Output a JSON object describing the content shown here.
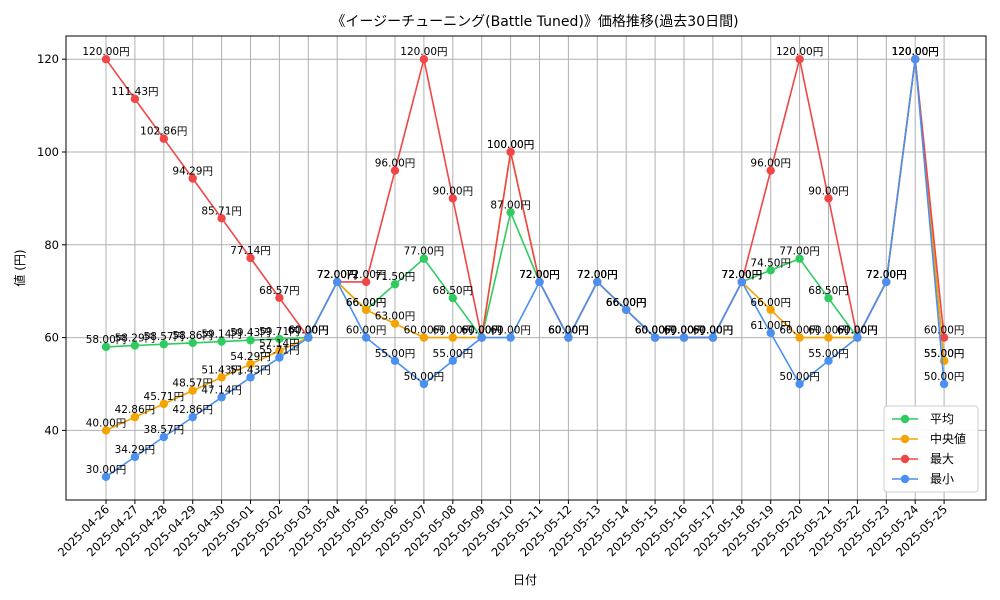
{
  "chart_data": {
    "type": "line",
    "title": "《イージーチューニング(Battle Tuned)》価格推移(過去30日間)",
    "xlabel": "日付",
    "ylabel": "値 (円)",
    "ylim": [
      25,
      125
    ],
    "yticks": [
      40,
      60,
      80,
      100,
      120
    ],
    "grid": true,
    "legend_position": "lower-right",
    "label_suffix": "円",
    "categories": [
      "2025-04-26",
      "2025-04-27",
      "2025-04-28",
      "2025-04-29",
      "2025-04-30",
      "2025-05-01",
      "2025-05-02",
      "2025-05-03",
      "2025-05-04",
      "2025-05-05",
      "2025-05-06",
      "2025-05-07",
      "2025-05-08",
      "2025-05-09",
      "2025-05-10",
      "2025-05-11",
      "2025-05-12",
      "2025-05-13",
      "2025-05-14",
      "2025-05-15",
      "2025-05-16",
      "2025-05-17",
      "2025-05-18",
      "2025-05-19",
      "2025-05-20",
      "2025-05-21",
      "2025-05-22",
      "2025-05-23",
      "2025-05-24",
      "2025-05-25"
    ],
    "series": [
      {
        "name": "平均",
        "color": "#2ecc5f",
        "values": [
          58.0,
          58.29,
          58.57,
          58.86,
          59.14,
          59.43,
          59.71,
          60.0,
          72.0,
          66.0,
          71.5,
          77.0,
          68.5,
          60.0,
          87.0,
          72.0,
          60.0,
          72.0,
          66.0,
          60.0,
          60.0,
          60.0,
          72.0,
          74.5,
          77.0,
          68.5,
          60.0,
          72.0,
          120.0,
          55.0
        ]
      },
      {
        "name": "中央値",
        "color": "#f5a300",
        "values": [
          40.0,
          42.86,
          45.71,
          48.57,
          51.43,
          54.29,
          57.14,
          60.0,
          72.0,
          66.0,
          63.0,
          60.0,
          60.0,
          60.0,
          100.0,
          72.0,
          60.0,
          72.0,
          66.0,
          60.0,
          60.0,
          60.0,
          72.0,
          66.0,
          60.0,
          60.0,
          60.0,
          72.0,
          120.0,
          55.0
        ]
      },
      {
        "name": "最大",
        "color": "#f04646",
        "values": [
          120.0,
          111.43,
          102.86,
          94.29,
          85.71,
          77.14,
          68.57,
          60.0,
          72.0,
          72.0,
          96.0,
          120.0,
          90.0,
          60.0,
          100.0,
          72.0,
          60.0,
          72.0,
          66.0,
          60.0,
          60.0,
          60.0,
          72.0,
          96.0,
          120.0,
          90.0,
          60.0,
          72.0,
          120.0,
          60.0
        ]
      },
      {
        "name": "最小",
        "color": "#4a90f0",
        "values": [
          30.0,
          34.29,
          38.57,
          42.86,
          47.14,
          51.43,
          55.71,
          60.0,
          72.0,
          60.0,
          55.0,
          50.0,
          55.0,
          60.0,
          60.0,
          72.0,
          60.0,
          72.0,
          66.0,
          60.0,
          60.0,
          60.0,
          72.0,
          61.0,
          50.0,
          55.0,
          60.0,
          72.0,
          120.0,
          50.0
        ]
      }
    ]
  }
}
